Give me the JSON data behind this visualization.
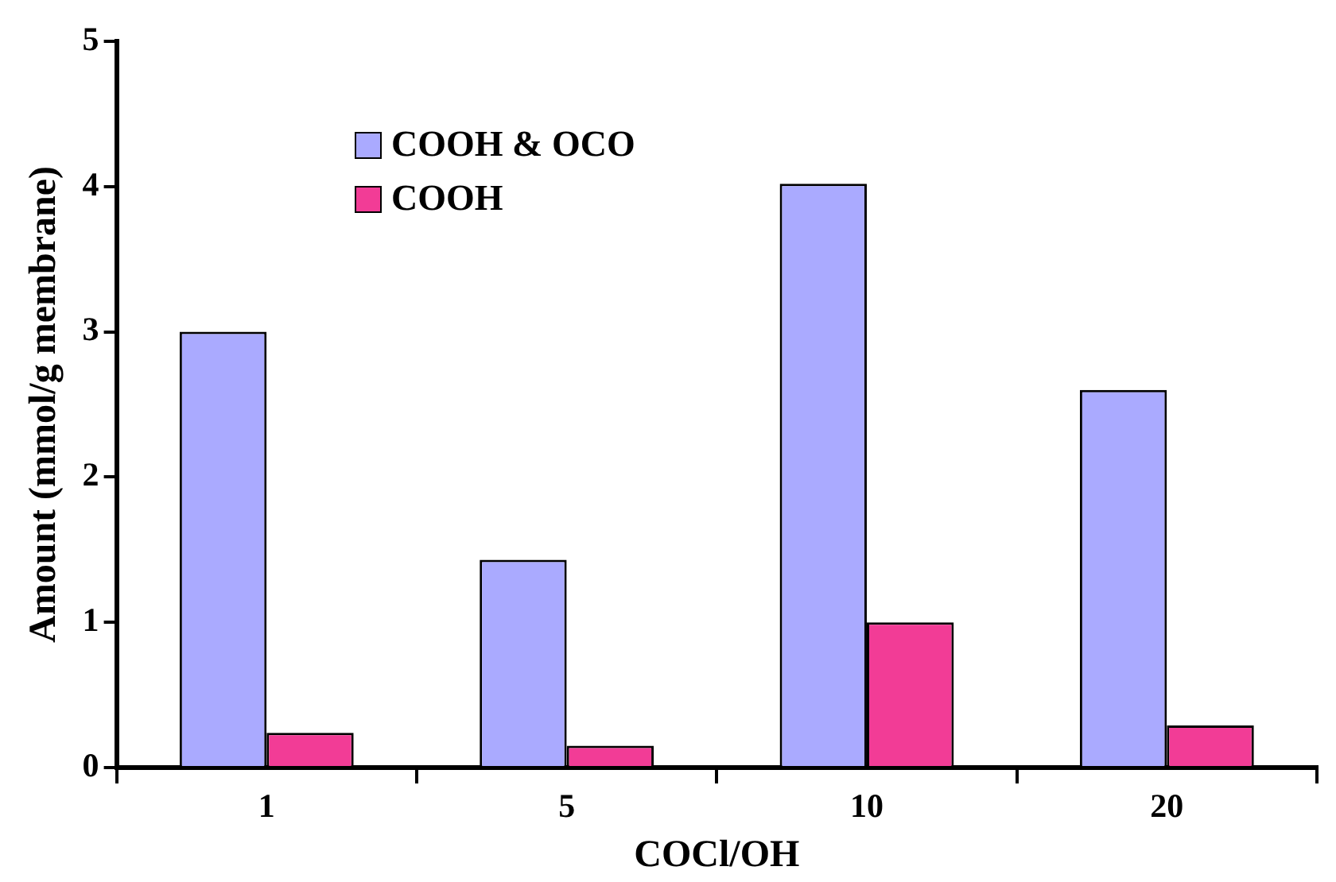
{
  "chart_data": {
    "type": "bar",
    "xlabel": "COCl/OH",
    "ylabel": "Amount (mmol/g membrane)",
    "categories": [
      "1",
      "5",
      "10",
      "20"
    ],
    "series": [
      {
        "name": "COOH & OCO",
        "color": "#aaaaff",
        "values": [
          3.0,
          1.43,
          4.02,
          2.6
        ]
      },
      {
        "name": "COOH",
        "color": "#f23c96",
        "values": [
          0.24,
          0.15,
          1.0,
          0.29
        ]
      }
    ],
    "ylim": [
      0,
      5
    ],
    "yticks": [
      0,
      1,
      2,
      3,
      4,
      5
    ],
    "grid": false,
    "legend": "top left"
  }
}
